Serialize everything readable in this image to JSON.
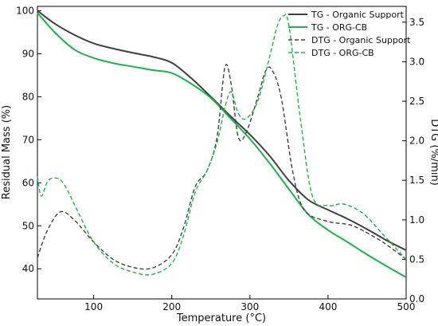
{
  "chart_data": {
    "type": "line",
    "xlabel": "Temperature (°C)",
    "ylabel": "Residual Mass (%)",
    "y2label": "DTG (%/min)",
    "xlim": [
      28,
      500
    ],
    "ylim": [
      33,
      101
    ],
    "y2lim": [
      0,
      3.7
    ],
    "xticks": [
      100,
      200,
      300,
      400,
      500
    ],
    "yticks": [
      40,
      50,
      60,
      70,
      80,
      90,
      100
    ],
    "y2ticks": [
      0.0,
      0.5,
      1.0,
      1.5,
      2.0,
      2.5,
      3.0,
      3.5
    ],
    "legend_position": "top-right",
    "colors": {
      "organic": "#404040",
      "orgcb": "#20b24a"
    },
    "series": [
      {
        "name": "TG - Organic Support",
        "axis": "left",
        "style": "solid",
        "color_key": "organic",
        "x": [
          28,
          50,
          75,
          100,
          125,
          150,
          175,
          200,
          225,
          250,
          275,
          300,
          325,
          350,
          375,
          400,
          425,
          450,
          475,
          500
        ],
        "y": [
          100,
          97,
          94.4,
          92.4,
          91.2,
          90.2,
          89.3,
          87.9,
          84.3,
          80.0,
          75.5,
          71.2,
          66.3,
          60.5,
          56.0,
          53.7,
          51.6,
          49.2,
          46.6,
          44.3
        ]
      },
      {
        "name": "TG - ORG-CB",
        "axis": "left",
        "style": "solid",
        "color_key": "orgcb",
        "x": [
          28,
          50,
          75,
          100,
          125,
          150,
          175,
          200,
          225,
          250,
          275,
          300,
          325,
          350,
          375,
          400,
          425,
          450,
          475,
          500
        ],
        "y": [
          99.5,
          95.0,
          91.0,
          89.0,
          87.8,
          87.0,
          86.2,
          85.5,
          83.0,
          79.7,
          75.0,
          70.2,
          64.6,
          58.5,
          52.6,
          49.0,
          46.2,
          43.3,
          40.6,
          38.0
        ]
      },
      {
        "name": "DTG - Organic Support",
        "axis": "right",
        "style": "dashed",
        "color_key": "organic",
        "x": [
          28,
          40,
          57,
          75,
          100,
          125,
          150,
          175,
          200,
          215,
          230,
          245,
          258,
          268,
          276,
          285,
          295,
          310,
          320,
          328,
          340,
          355,
          370,
          400,
          430,
          460,
          480,
          500
        ],
        "y": [
          0.52,
          0.85,
          1.1,
          1.0,
          0.72,
          0.5,
          0.4,
          0.39,
          0.56,
          0.9,
          1.42,
          1.62,
          2.05,
          2.93,
          2.72,
          2.05,
          2.1,
          2.55,
          2.88,
          2.9,
          2.55,
          1.6,
          1.12,
          0.98,
          0.93,
          0.78,
          0.65,
          0.5
        ]
      },
      {
        "name": "DTG - ORG-CB",
        "axis": "right",
        "style": "dashed",
        "color_key": "orgcb",
        "x": [
          28,
          33,
          42,
          55,
          65,
          80,
          100,
          125,
          150,
          175,
          200,
          215,
          230,
          245,
          258,
          268,
          276,
          285,
          295,
          310,
          325,
          335,
          343,
          350,
          365,
          380,
          400,
          420,
          445,
          470,
          500
        ],
        "y": [
          1.55,
          1.3,
          1.5,
          1.52,
          1.4,
          1.1,
          0.72,
          0.45,
          0.34,
          0.31,
          0.45,
          0.8,
          1.35,
          1.62,
          1.98,
          2.42,
          2.62,
          2.35,
          2.28,
          2.5,
          3.05,
          3.45,
          3.58,
          3.45,
          2.25,
          1.3,
          1.18,
          1.2,
          1.08,
          0.82,
          0.5
        ]
      }
    ]
  }
}
